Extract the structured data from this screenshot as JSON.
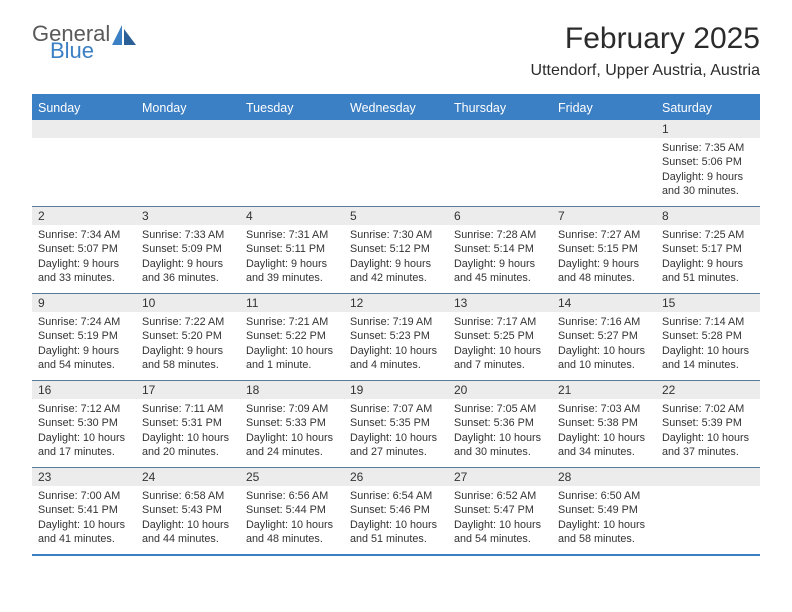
{
  "logo": {
    "text1": "General",
    "text2": "Blue",
    "color1": "#5a5a5a",
    "color2": "#3b7fc4"
  },
  "title": "February 2025",
  "location": "Uttendorf, Upper Austria, Austria",
  "colors": {
    "header_bg": "#3b7fc4",
    "header_text": "#ffffff",
    "daynum_bg": "#ececec",
    "rule": "#5a7a9a",
    "body_text": "#333333"
  },
  "day_names": [
    "Sunday",
    "Monday",
    "Tuesday",
    "Wednesday",
    "Thursday",
    "Friday",
    "Saturday"
  ],
  "weeks": [
    [
      {
        "n": "",
        "sunrise": "",
        "sunset": "",
        "daylight": ""
      },
      {
        "n": "",
        "sunrise": "",
        "sunset": "",
        "daylight": ""
      },
      {
        "n": "",
        "sunrise": "",
        "sunset": "",
        "daylight": ""
      },
      {
        "n": "",
        "sunrise": "",
        "sunset": "",
        "daylight": ""
      },
      {
        "n": "",
        "sunrise": "",
        "sunset": "",
        "daylight": ""
      },
      {
        "n": "",
        "sunrise": "",
        "sunset": "",
        "daylight": ""
      },
      {
        "n": "1",
        "sunrise": "Sunrise: 7:35 AM",
        "sunset": "Sunset: 5:06 PM",
        "daylight": "Daylight: 9 hours and 30 minutes."
      }
    ],
    [
      {
        "n": "2",
        "sunrise": "Sunrise: 7:34 AM",
        "sunset": "Sunset: 5:07 PM",
        "daylight": "Daylight: 9 hours and 33 minutes."
      },
      {
        "n": "3",
        "sunrise": "Sunrise: 7:33 AM",
        "sunset": "Sunset: 5:09 PM",
        "daylight": "Daylight: 9 hours and 36 minutes."
      },
      {
        "n": "4",
        "sunrise": "Sunrise: 7:31 AM",
        "sunset": "Sunset: 5:11 PM",
        "daylight": "Daylight: 9 hours and 39 minutes."
      },
      {
        "n": "5",
        "sunrise": "Sunrise: 7:30 AM",
        "sunset": "Sunset: 5:12 PM",
        "daylight": "Daylight: 9 hours and 42 minutes."
      },
      {
        "n": "6",
        "sunrise": "Sunrise: 7:28 AM",
        "sunset": "Sunset: 5:14 PM",
        "daylight": "Daylight: 9 hours and 45 minutes."
      },
      {
        "n": "7",
        "sunrise": "Sunrise: 7:27 AM",
        "sunset": "Sunset: 5:15 PM",
        "daylight": "Daylight: 9 hours and 48 minutes."
      },
      {
        "n": "8",
        "sunrise": "Sunrise: 7:25 AM",
        "sunset": "Sunset: 5:17 PM",
        "daylight": "Daylight: 9 hours and 51 minutes."
      }
    ],
    [
      {
        "n": "9",
        "sunrise": "Sunrise: 7:24 AM",
        "sunset": "Sunset: 5:19 PM",
        "daylight": "Daylight: 9 hours and 54 minutes."
      },
      {
        "n": "10",
        "sunrise": "Sunrise: 7:22 AM",
        "sunset": "Sunset: 5:20 PM",
        "daylight": "Daylight: 9 hours and 58 minutes."
      },
      {
        "n": "11",
        "sunrise": "Sunrise: 7:21 AM",
        "sunset": "Sunset: 5:22 PM",
        "daylight": "Daylight: 10 hours and 1 minute."
      },
      {
        "n": "12",
        "sunrise": "Sunrise: 7:19 AM",
        "sunset": "Sunset: 5:23 PM",
        "daylight": "Daylight: 10 hours and 4 minutes."
      },
      {
        "n": "13",
        "sunrise": "Sunrise: 7:17 AM",
        "sunset": "Sunset: 5:25 PM",
        "daylight": "Daylight: 10 hours and 7 minutes."
      },
      {
        "n": "14",
        "sunrise": "Sunrise: 7:16 AM",
        "sunset": "Sunset: 5:27 PM",
        "daylight": "Daylight: 10 hours and 10 minutes."
      },
      {
        "n": "15",
        "sunrise": "Sunrise: 7:14 AM",
        "sunset": "Sunset: 5:28 PM",
        "daylight": "Daylight: 10 hours and 14 minutes."
      }
    ],
    [
      {
        "n": "16",
        "sunrise": "Sunrise: 7:12 AM",
        "sunset": "Sunset: 5:30 PM",
        "daylight": "Daylight: 10 hours and 17 minutes."
      },
      {
        "n": "17",
        "sunrise": "Sunrise: 7:11 AM",
        "sunset": "Sunset: 5:31 PM",
        "daylight": "Daylight: 10 hours and 20 minutes."
      },
      {
        "n": "18",
        "sunrise": "Sunrise: 7:09 AM",
        "sunset": "Sunset: 5:33 PM",
        "daylight": "Daylight: 10 hours and 24 minutes."
      },
      {
        "n": "19",
        "sunrise": "Sunrise: 7:07 AM",
        "sunset": "Sunset: 5:35 PM",
        "daylight": "Daylight: 10 hours and 27 minutes."
      },
      {
        "n": "20",
        "sunrise": "Sunrise: 7:05 AM",
        "sunset": "Sunset: 5:36 PM",
        "daylight": "Daylight: 10 hours and 30 minutes."
      },
      {
        "n": "21",
        "sunrise": "Sunrise: 7:03 AM",
        "sunset": "Sunset: 5:38 PM",
        "daylight": "Daylight: 10 hours and 34 minutes."
      },
      {
        "n": "22",
        "sunrise": "Sunrise: 7:02 AM",
        "sunset": "Sunset: 5:39 PM",
        "daylight": "Daylight: 10 hours and 37 minutes."
      }
    ],
    [
      {
        "n": "23",
        "sunrise": "Sunrise: 7:00 AM",
        "sunset": "Sunset: 5:41 PM",
        "daylight": "Daylight: 10 hours and 41 minutes."
      },
      {
        "n": "24",
        "sunrise": "Sunrise: 6:58 AM",
        "sunset": "Sunset: 5:43 PM",
        "daylight": "Daylight: 10 hours and 44 minutes."
      },
      {
        "n": "25",
        "sunrise": "Sunrise: 6:56 AM",
        "sunset": "Sunset: 5:44 PM",
        "daylight": "Daylight: 10 hours and 48 minutes."
      },
      {
        "n": "26",
        "sunrise": "Sunrise: 6:54 AM",
        "sunset": "Sunset: 5:46 PM",
        "daylight": "Daylight: 10 hours and 51 minutes."
      },
      {
        "n": "27",
        "sunrise": "Sunrise: 6:52 AM",
        "sunset": "Sunset: 5:47 PM",
        "daylight": "Daylight: 10 hours and 54 minutes."
      },
      {
        "n": "28",
        "sunrise": "Sunrise: 6:50 AM",
        "sunset": "Sunset: 5:49 PM",
        "daylight": "Daylight: 10 hours and 58 minutes."
      },
      {
        "n": "",
        "sunrise": "",
        "sunset": "",
        "daylight": ""
      }
    ]
  ]
}
